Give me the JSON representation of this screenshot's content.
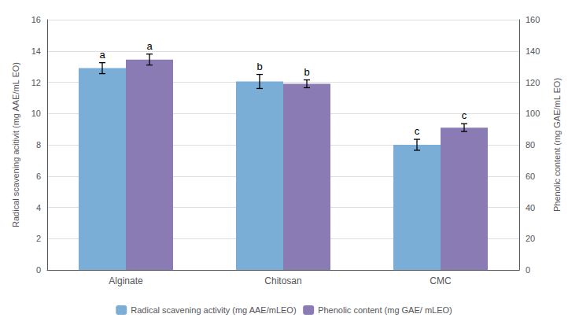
{
  "chart_data": {
    "type": "bar",
    "categories": [
      "Alginate",
      "Chitosan",
      "CMC"
    ],
    "series": [
      {
        "name": "Radical scavening activity (mg AAE/mLEO)",
        "color": "#7aaed6",
        "values": [
          12.9,
          12.05,
          8.0
        ],
        "errors": [
          0.35,
          0.45,
          0.35
        ],
        "annotations": [
          "a",
          "b",
          "c"
        ]
      },
      {
        "name": "Phenolic content (mg GAE/ mLEO)",
        "color": "#8b7bb5",
        "axis": "y2",
        "values": [
          134.5,
          119.0,
          91.0
        ],
        "errors": [
          3.5,
          2.5,
          2.5
        ],
        "annotations": [
          "a",
          "b",
          "c"
        ]
      }
    ],
    "ylabel": "Radical scavening acitivit (mg AAE/mL EO)",
    "y2label": "Phenolic content (mg GAE/mL EO)",
    "ylim": [
      0,
      16
    ],
    "yticks": [
      0,
      2,
      4,
      6,
      8,
      10,
      12,
      14,
      16
    ],
    "y2lim": [
      0,
      160
    ],
    "y2ticks": [
      0,
      20,
      40,
      60,
      80,
      100,
      120,
      140,
      160
    ],
    "grid": true,
    "legend": "bottom"
  }
}
